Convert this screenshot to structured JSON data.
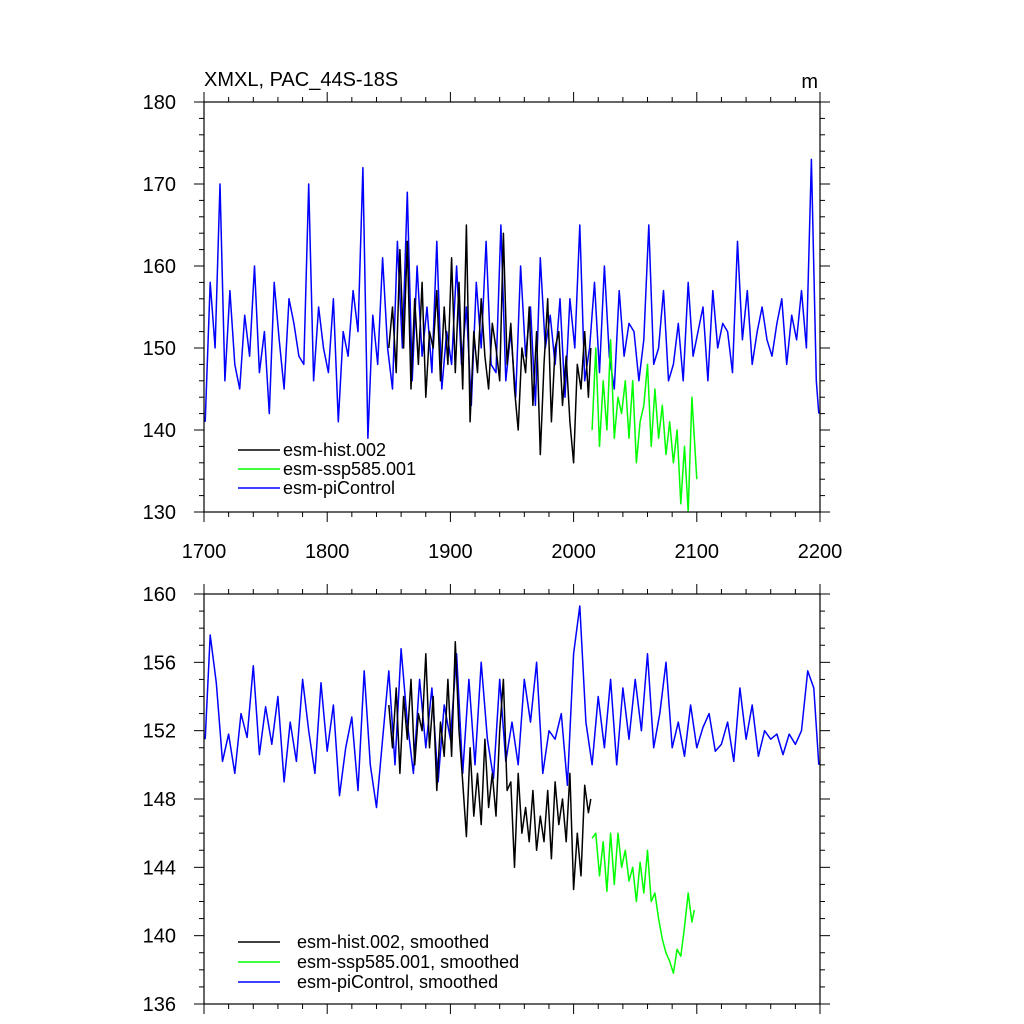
{
  "chart_data": [
    {
      "type": "line",
      "title": "XMXL, PAC_44S-18S",
      "units": "m",
      "xlim": [
        1700,
        2200
      ],
      "ylim": [
        130,
        180
      ],
      "x_ticks": [
        "1700",
        "1800",
        "1900",
        "2000",
        "2100",
        "2200"
      ],
      "y_ticks": [
        "130",
        "140",
        "150",
        "160",
        "170",
        "180"
      ],
      "series": [
        {
          "name": "esm-piControl",
          "color": "#0000ff",
          "x": [
            1701,
            1705,
            1709,
            1713,
            1717,
            1721,
            1725,
            1729,
            1733,
            1737,
            1741,
            1745,
            1749,
            1753,
            1757,
            1761,
            1765,
            1769,
            1773,
            1777,
            1781,
            1785,
            1789,
            1793,
            1797,
            1801,
            1805,
            1809,
            1813,
            1817,
            1821,
            1825,
            1829,
            1833,
            1837,
            1841,
            1845,
            1849,
            1853,
            1857,
            1861,
            1865,
            1869,
            1873,
            1877,
            1881,
            1885,
            1889,
            1893,
            1897,
            1901,
            1905,
            1909,
            1913,
            1917,
            1921,
            1925,
            1929,
            1933,
            1937,
            1941,
            1945,
            1949,
            1953,
            1957,
            1961,
            1965,
            1969,
            1973,
            1977,
            1981,
            1985,
            1989,
            1993,
            1997,
            2001,
            2005,
            2009,
            2013,
            2017,
            2021,
            2025,
            2029,
            2033,
            2037,
            2041,
            2045,
            2049,
            2053,
            2057,
            2061,
            2065,
            2069,
            2073,
            2077,
            2081,
            2085,
            2089,
            2093,
            2097,
            2101,
            2105,
            2109,
            2113,
            2117,
            2121,
            2125,
            2129,
            2133,
            2137,
            2141,
            2145,
            2149,
            2153,
            2157,
            2161,
            2165,
            2169,
            2173,
            2177,
            2181,
            2185,
            2189,
            2193,
            2197,
            2199
          ],
          "y": [
            141,
            158,
            150,
            170,
            146,
            157,
            148,
            145,
            154,
            149,
            160,
            147,
            152,
            142,
            158,
            151,
            145,
            156,
            153,
            149,
            148,
            170,
            146,
            155,
            150,
            147,
            156,
            141,
            152,
            149,
            157,
            152,
            172,
            139,
            154,
            148,
            161,
            150,
            145,
            163,
            150,
            169,
            146,
            160,
            149,
            155,
            147,
            163,
            145,
            152,
            148,
            160,
            148,
            155,
            143,
            158,
            150,
            163,
            148,
            147,
            165,
            146,
            152,
            144,
            160,
            149,
            155,
            143,
            161,
            150,
            154,
            148,
            156,
            144,
            156,
            150,
            165,
            146,
            150,
            158,
            147,
            160,
            149,
            145,
            157,
            149,
            153,
            152,
            146,
            151,
            165,
            148,
            150,
            157,
            146,
            148,
            153,
            146,
            158,
            149,
            152,
            155,
            146,
            157,
            150,
            153,
            152,
            147,
            163,
            151,
            157,
            148,
            152,
            155,
            151,
            149,
            153,
            156,
            148,
            154,
            151,
            157,
            150,
            173,
            146,
            142
          ]
        },
        {
          "name": "esm-hist.002",
          "color": "#000000",
          "x": [
            1850,
            1853,
            1856,
            1859,
            1862,
            1865,
            1868,
            1871,
            1874,
            1877,
            1880,
            1883,
            1886,
            1889,
            1892,
            1895,
            1898,
            1901,
            1904,
            1907,
            1910,
            1913,
            1916,
            1919,
            1922,
            1925,
            1928,
            1931,
            1934,
            1937,
            1940,
            1943,
            1946,
            1949,
            1952,
            1955,
            1958,
            1961,
            1964,
            1967,
            1970,
            1973,
            1976,
            1979,
            1982,
            1985,
            1988,
            1991,
            1994,
            1997,
            2000,
            2003,
            2006,
            2009,
            2012,
            2014
          ],
          "y": [
            150,
            155,
            147,
            162,
            150,
            163,
            145,
            156,
            148,
            158,
            144,
            152,
            150,
            157,
            146,
            155,
            148,
            161,
            147,
            158,
            145,
            165,
            141,
            152,
            147,
            156,
            149,
            145,
            153,
            150,
            146,
            164,
            148,
            153,
            145,
            140,
            150,
            147,
            155,
            143,
            152,
            137,
            148,
            156,
            141,
            150,
            152,
            143,
            149,
            141,
            136,
            148,
            145,
            152,
            144,
            150
          ]
        },
        {
          "name": "esm-ssp585.001",
          "color": "#00ff00",
          "x": [
            2015,
            2018,
            2021,
            2024,
            2027,
            2030,
            2033,
            2036,
            2039,
            2042,
            2045,
            2048,
            2051,
            2054,
            2057,
            2060,
            2063,
            2066,
            2069,
            2072,
            2075,
            2078,
            2081,
            2084,
            2087,
            2090,
            2093,
            2096,
            2100
          ],
          "y": [
            140,
            150,
            138,
            146,
            140,
            151,
            139,
            144,
            142,
            146,
            139,
            146,
            136,
            141,
            143,
            148,
            138,
            145,
            139,
            143,
            137,
            141,
            136,
            140,
            131,
            138,
            130,
            144,
            134
          ]
        }
      ]
    },
    {
      "type": "line",
      "xlim": [
        1700,
        2200
      ],
      "ylim": [
        136,
        160
      ],
      "y_ticks": [
        "136",
        "140",
        "144",
        "148",
        "152",
        "156",
        "160"
      ],
      "series": [
        {
          "name": "esm-piControl, smoothed",
          "color": "#0000ff",
          "x": [
            1701,
            1705,
            1710,
            1715,
            1720,
            1725,
            1730,
            1735,
            1740,
            1745,
            1750,
            1755,
            1760,
            1765,
            1770,
            1775,
            1780,
            1785,
            1790,
            1795,
            1800,
            1805,
            1810,
            1815,
            1820,
            1825,
            1830,
            1835,
            1840,
            1845,
            1850,
            1855,
            1860,
            1865,
            1870,
            1875,
            1880,
            1885,
            1890,
            1895,
            1900,
            1905,
            1910,
            1915,
            1920,
            1925,
            1930,
            1935,
            1940,
            1945,
            1950,
            1955,
            1960,
            1965,
            1970,
            1975,
            1980,
            1985,
            1990,
            1995,
            2000,
            2005,
            2010,
            2015,
            2020,
            2025,
            2030,
            2035,
            2040,
            2045,
            2050,
            2055,
            2060,
            2065,
            2070,
            2075,
            2080,
            2085,
            2090,
            2095,
            2100,
            2105,
            2110,
            2115,
            2120,
            2125,
            2130,
            2135,
            2140,
            2145,
            2150,
            2155,
            2160,
            2165,
            2170,
            2175,
            2180,
            2185,
            2190,
            2195,
            2199
          ],
          "y": [
            151.5,
            157.6,
            154.8,
            150.2,
            151.8,
            149.5,
            153.0,
            151.6,
            155.8,
            150.6,
            153.4,
            151.2,
            154.0,
            149.0,
            152.5,
            150.2,
            155.0,
            152.0,
            149.5,
            154.8,
            150.8,
            153.5,
            148.2,
            151.0,
            152.8,
            148.5,
            155.5,
            150.0,
            147.5,
            151.5,
            155.5,
            150.0,
            156.8,
            152.5,
            149.5,
            155.0,
            151.0,
            154.5,
            149.0,
            153.5,
            151.5,
            156.5,
            149.5,
            155.0,
            150.0,
            156.0,
            151.5,
            149.2,
            155.0,
            150.2,
            152.5,
            150.0,
            155.0,
            152.5,
            156.0,
            149.5,
            152.0,
            151.5,
            153.0,
            148.8,
            156.5,
            159.3,
            152.5,
            150.0,
            154.0,
            151.0,
            155.0,
            150.0,
            154.5,
            151.5,
            155.0,
            152.0,
            156.5,
            151.0,
            153.0,
            156.0,
            151.0,
            152.5,
            150.5,
            153.5,
            151.0,
            152.2,
            153.0,
            150.8,
            151.2,
            152.5,
            150.2,
            154.5,
            151.5,
            153.5,
            150.5,
            152.0,
            151.5,
            151.8,
            150.6,
            151.8,
            151.2,
            152.0,
            155.5,
            154.5,
            150.0
          ]
        },
        {
          "name": "esm-hist.002, smoothed",
          "color": "#000000",
          "x": [
            1850,
            1853,
            1856,
            1859,
            1862,
            1865,
            1868,
            1871,
            1874,
            1877,
            1880,
            1883,
            1886,
            1889,
            1892,
            1895,
            1898,
            1901,
            1904,
            1907,
            1910,
            1913,
            1916,
            1919,
            1922,
            1925,
            1928,
            1931,
            1934,
            1937,
            1940,
            1943,
            1946,
            1949,
            1952,
            1955,
            1958,
            1961,
            1964,
            1967,
            1970,
            1973,
            1976,
            1979,
            1982,
            1985,
            1988,
            1991,
            1994,
            1997,
            2000,
            2003,
            2006,
            2009,
            2012,
            2014
          ],
          "y": [
            153.5,
            151.0,
            154.5,
            149.5,
            154.0,
            151.5,
            155.0,
            150.0,
            153.0,
            152.0,
            156.5,
            151.0,
            154.0,
            148.5,
            152.5,
            150.5,
            155.0,
            150.5,
            157.2,
            152.0,
            149.0,
            145.8,
            151.0,
            147.0,
            149.5,
            146.5,
            151.5,
            147.5,
            149.5,
            147.0,
            152.0,
            155.0,
            148.5,
            149.0,
            144.0,
            149.5,
            146.0,
            147.5,
            145.5,
            148.5,
            145.0,
            147.0,
            145.5,
            148.5,
            144.5,
            149.0,
            146.5,
            148.0,
            145.5,
            149.5,
            142.7,
            146.0,
            143.5,
            148.8,
            147.2,
            148.0
          ]
        },
        {
          "name": "esm-ssp585.001, smoothed",
          "color": "#00ff00",
          "x": [
            2015,
            2018,
            2021,
            2024,
            2027,
            2030,
            2033,
            2036,
            2039,
            2042,
            2045,
            2048,
            2051,
            2054,
            2057,
            2060,
            2063,
            2066,
            2069,
            2072,
            2075,
            2078,
            2081,
            2084,
            2087,
            2090,
            2093,
            2096,
            2098
          ],
          "y": [
            145.7,
            146.0,
            143.5,
            145.5,
            142.6,
            146.0,
            143.0,
            146.0,
            144.0,
            145.0,
            143.2,
            144.0,
            142.0,
            144.3,
            142.5,
            145.0,
            142.0,
            142.5,
            141.0,
            139.8,
            139.0,
            138.5,
            137.8,
            139.2,
            138.8,
            140.5,
            142.5,
            140.8,
            141.5
          ]
        }
      ]
    }
  ]
}
